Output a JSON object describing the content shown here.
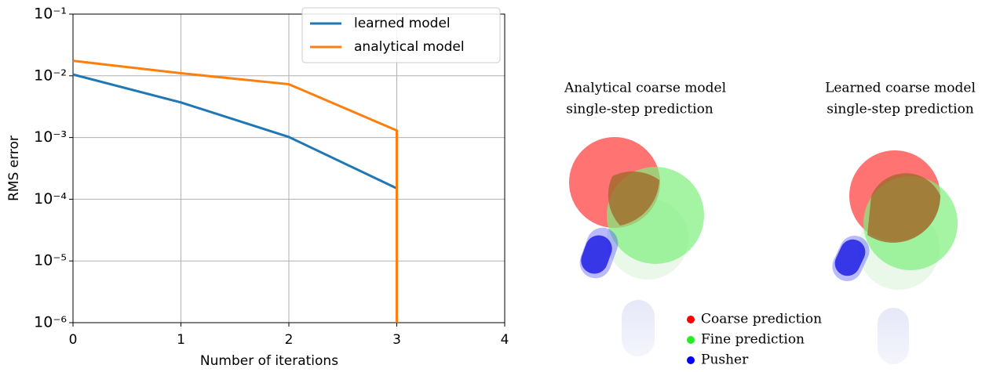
{
  "chart_data": {
    "type": "line",
    "xlabel": "Number of iterations",
    "ylabel": "RMS error",
    "x": [
      0,
      1,
      2,
      3,
      3
    ],
    "series": [
      {
        "name": "learned model",
        "color": "#1f77b4",
        "values": [
          0.0105,
          0.0037,
          0.00102,
          0.00015,
          null
        ]
      },
      {
        "name": "analytical model",
        "color": "#ff7f0e",
        "values": [
          0.0175,
          0.011,
          0.0073,
          0.0013,
          1e-06
        ]
      }
    ],
    "xlim": [
      0,
      4
    ],
    "xticks": [
      0,
      1,
      2,
      3,
      4
    ],
    "ylim": [
      1e-06,
      0.1
    ],
    "yticks": [
      {
        "value": 1e-06,
        "label": "10⁻⁶"
      },
      {
        "value": 1e-05,
        "label": "10⁻⁵"
      },
      {
        "value": 0.0001,
        "label": "10⁻⁴"
      },
      {
        "value": 0.001,
        "label": "10⁻³"
      },
      {
        "value": 0.01,
        "label": "10⁻²"
      },
      {
        "value": 0.1,
        "label": "10⁻¹"
      }
    ],
    "log_y": true,
    "grid": true,
    "legend": "upper right"
  },
  "illustration": {
    "captions": [
      [
        "Analytical coarse model",
        "single-step prediction"
      ],
      [
        "Learned coarse model",
        "single-step prediction"
      ]
    ],
    "legend": [
      {
        "label": "Coarse prediction",
        "color": "#ff0000"
      },
      {
        "label": "Fine prediction",
        "color": "#22ee22"
      },
      {
        "label": "Pusher",
        "color": "#0000ff"
      }
    ]
  }
}
